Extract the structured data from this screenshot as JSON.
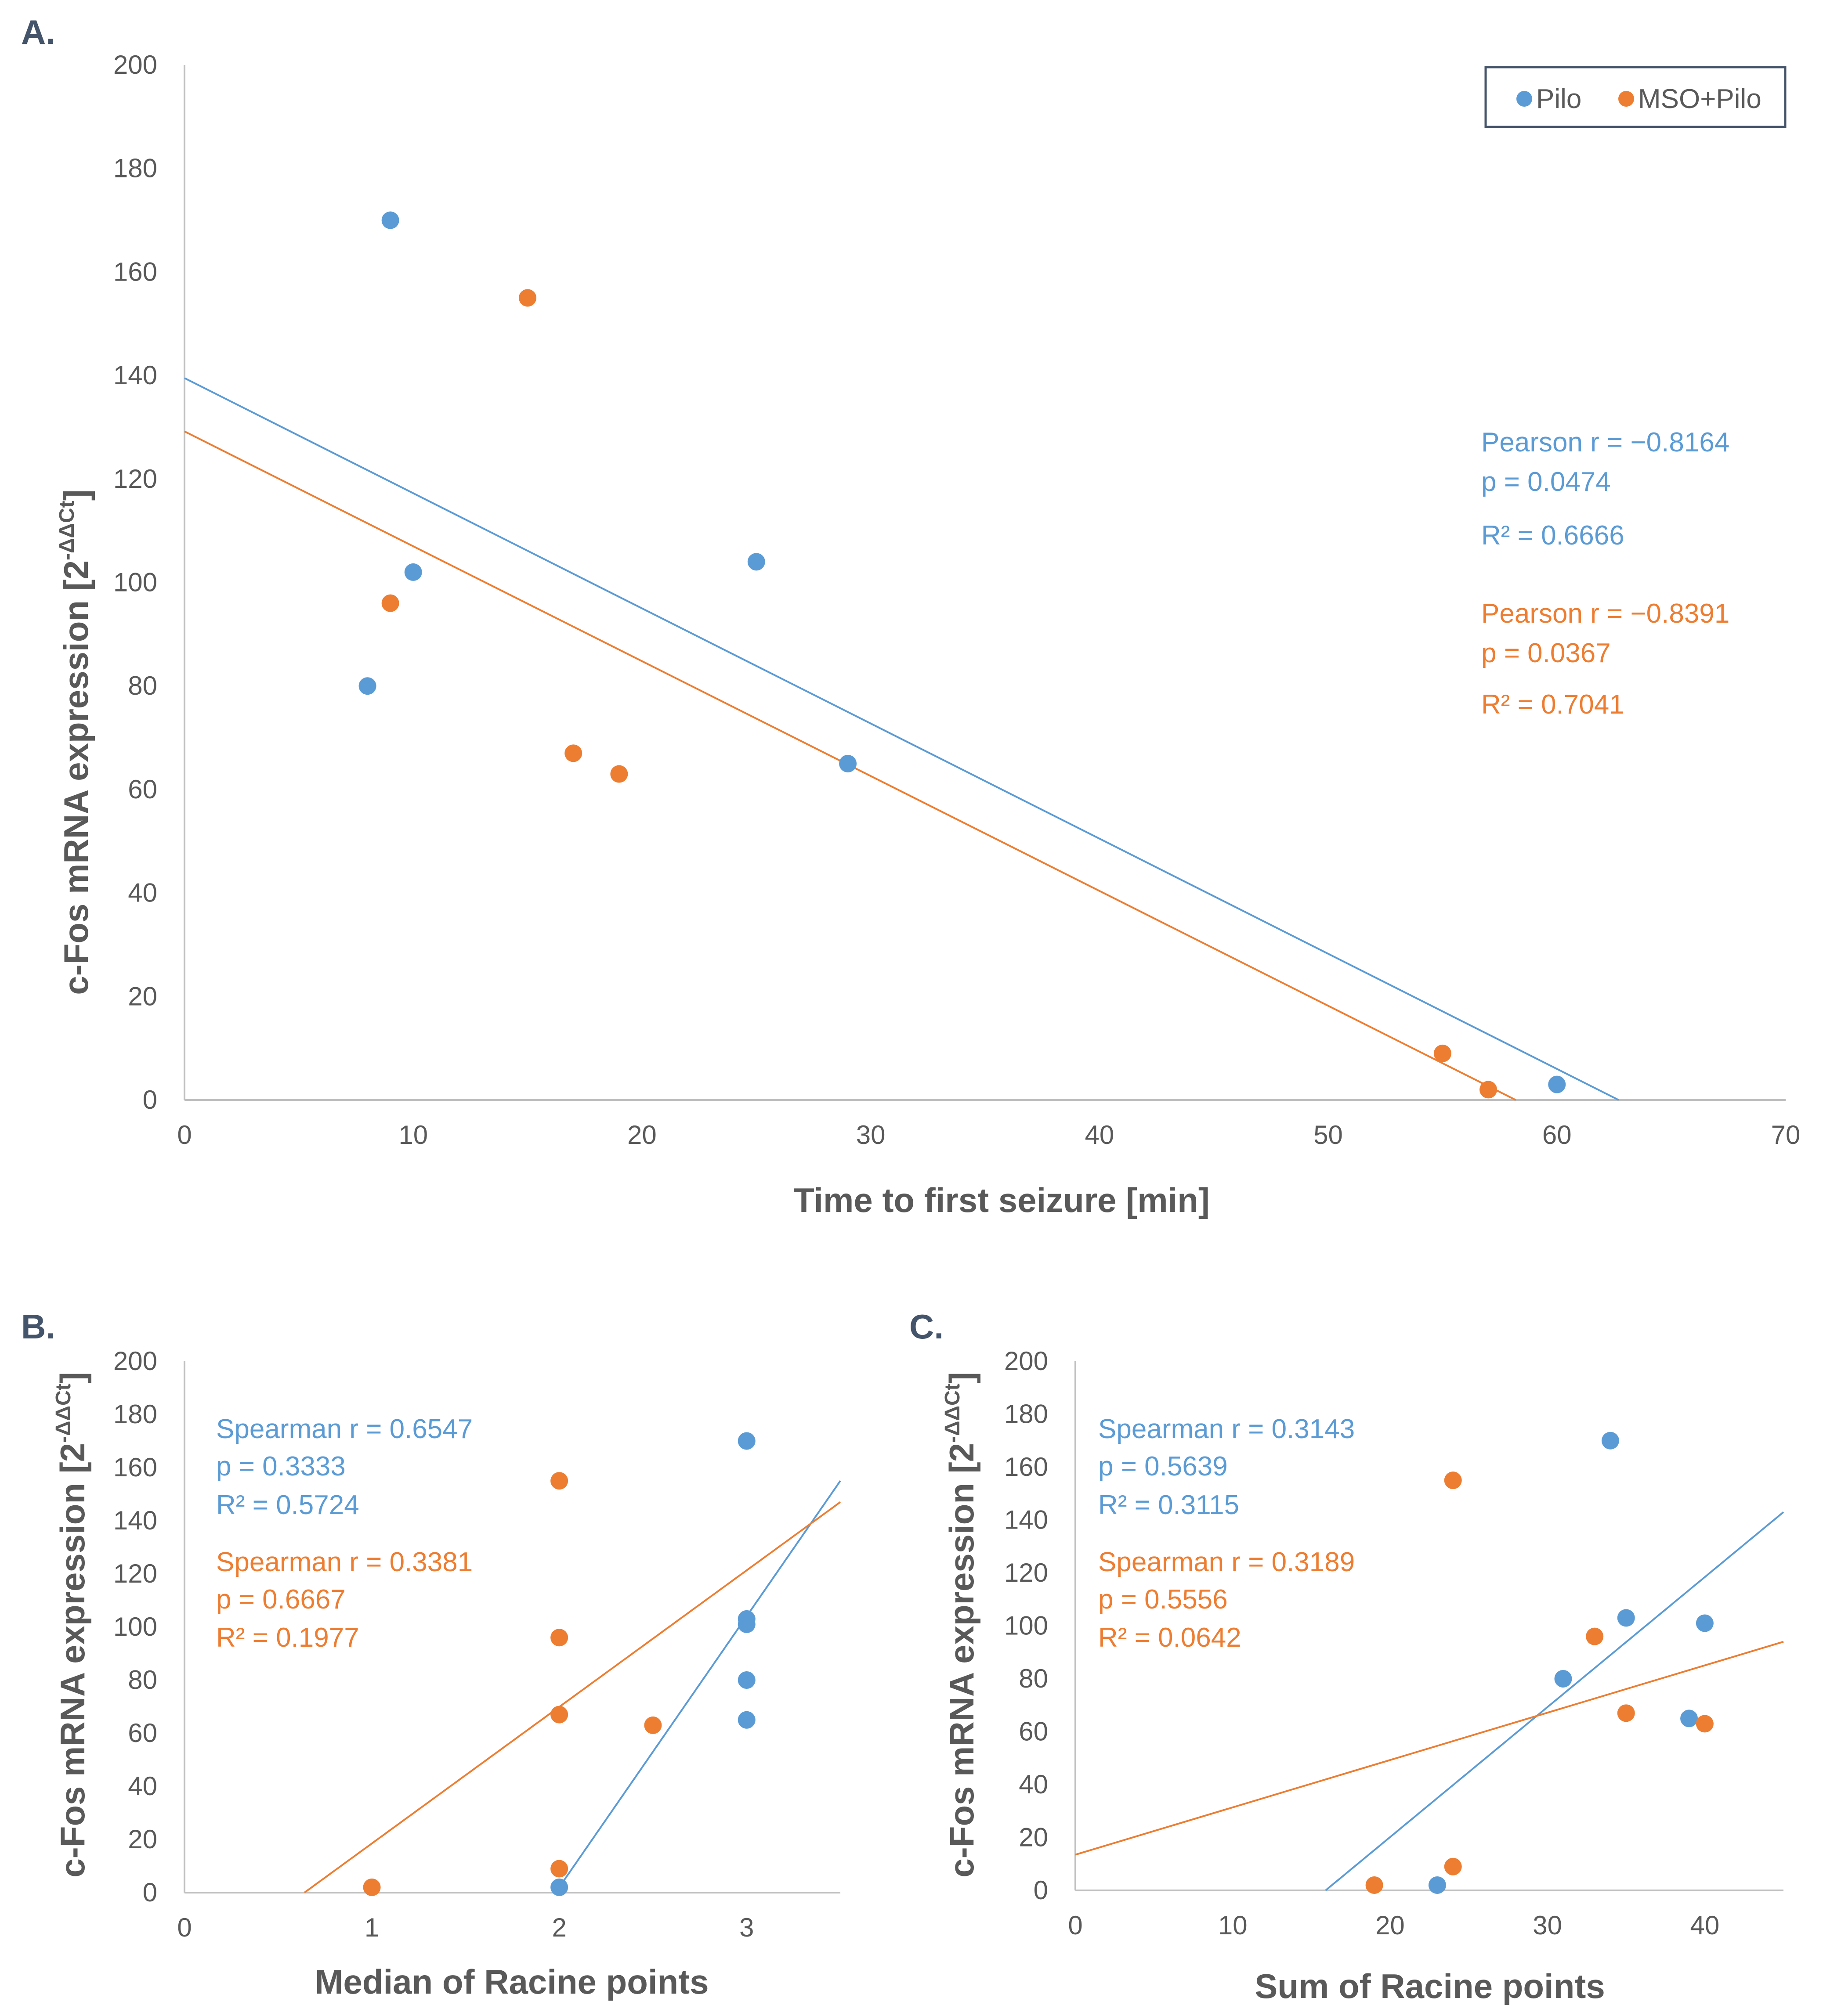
{
  "colors": {
    "pilo": "#5b9bd5",
    "mso_pilo": "#ed7d31",
    "axis": "#bfbfbf",
    "text": "#595959"
  },
  "legend": [
    "Pilo",
    "MSO+Pilo"
  ],
  "chart_data": [
    {
      "panel": "A.",
      "type": "scatter",
      "xlabel": "Time to first seizure [min]",
      "ylabel_main": "c-Fos mRNA expression [2",
      "ylabel_sup": "-ΔΔCt",
      "ylabel_end": "]",
      "xlim": [
        0,
        70
      ],
      "ylim": [
        0,
        200
      ],
      "x_ticks": [
        "0",
        "10",
        "20",
        "30",
        "40",
        "50",
        "60",
        "70"
      ],
      "y_ticks": [
        "0",
        "20",
        "40",
        "60",
        "80",
        "100",
        "120",
        "140",
        "160",
        "180",
        "200"
      ],
      "series": [
        {
          "name": "Pilo",
          "x": [
            8,
            9,
            10,
            25,
            29,
            60
          ],
          "y": [
            80,
            170,
            102,
            104,
            65,
            3
          ],
          "trendline": {
            "x": [
              0,
              62.7
            ],
            "y": [
              139.5,
              0
            ]
          },
          "stats": [
            "Pearson r = −0.8164",
            "p = 0.0474",
            "R² = 0.6666"
          ]
        },
        {
          "name": "MSO+Pilo",
          "x": [
            9,
            15,
            17,
            19,
            55,
            57
          ],
          "y": [
            96,
            155,
            67,
            63,
            9,
            2
          ],
          "trendline": {
            "x": [
              0,
              58.2
            ],
            "y": [
              129.2,
              0
            ]
          },
          "stats": [
            "Pearson r = −0.8391",
            "p = 0.0367",
            "R² = 0.7041"
          ]
        }
      ]
    },
    {
      "panel": "B.",
      "type": "scatter",
      "xlabel": "Median of Racine points",
      "ylabel_main": "c-Fos mRNA expression [2",
      "ylabel_sup": "-ΔΔCt",
      "ylabel_end": "]",
      "xlim": [
        0,
        3.5
      ],
      "ylim": [
        0,
        200
      ],
      "x_ticks": [
        "0",
        "1",
        "2",
        "3"
      ],
      "y_ticks": [
        "0",
        "20",
        "40",
        "60",
        "80",
        "100",
        "120",
        "140",
        "160",
        "180",
        "200"
      ],
      "series": [
        {
          "name": "Pilo",
          "x": [
            2,
            3,
            3,
            3,
            3,
            3
          ],
          "y": [
            2,
            170,
            103,
            101,
            80,
            65
          ],
          "trendline": {
            "x": [
              1.98,
              3.5
            ],
            "y": [
              0,
              155
            ]
          },
          "stats": [
            "Spearman r = 0.6547",
            "p = 0.3333",
            "R² = 0.5724"
          ]
        },
        {
          "name": "MSO+Pilo",
          "x": [
            1,
            2,
            2,
            2,
            2,
            2.5
          ],
          "y": [
            2,
            155,
            96,
            67,
            9,
            63
          ],
          "trendline": {
            "x": [
              0.64,
              3.5
            ],
            "y": [
              0,
              147
            ]
          },
          "stats": [
            "Spearman r = 0.3381",
            "p = 0.6667",
            "R² = 0.1977"
          ]
        }
      ]
    },
    {
      "panel": "C.",
      "type": "scatter",
      "xlabel": "Sum of Racine points",
      "ylabel_main": "c-Fos mRNA expression [2",
      "ylabel_sup": "-ΔΔCt",
      "ylabel_end": "]",
      "xlim": [
        0,
        45
      ],
      "ylim": [
        0,
        200
      ],
      "x_ticks": [
        "0",
        "10",
        "20",
        "30",
        "40"
      ],
      "y_ticks": [
        "0",
        "20",
        "40",
        "60",
        "80",
        "100",
        "120",
        "140",
        "160",
        "180",
        "200"
      ],
      "series": [
        {
          "name": "Pilo",
          "x": [
            23,
            31,
            34,
            35,
            39,
            40
          ],
          "y": [
            2,
            80,
            170,
            103,
            65,
            101
          ],
          "trendline": {
            "x": [
              15.9,
              45
            ],
            "y": [
              0,
              143
            ]
          },
          "stats": [
            "Spearman r = 0.3143",
            "p = 0.5639",
            "R² = 0.3115"
          ]
        },
        {
          "name": "MSO+Pilo",
          "x": [
            19,
            24,
            24,
            33,
            35,
            40
          ],
          "y": [
            2,
            9,
            155,
            96,
            67,
            63
          ],
          "trendline": {
            "x": [
              0,
              45
            ],
            "y": [
              13.5,
              94
            ]
          },
          "stats": [
            "Spearman r = 0.3189",
            "p = 0.5556",
            "R² = 0.0642"
          ]
        }
      ]
    }
  ]
}
